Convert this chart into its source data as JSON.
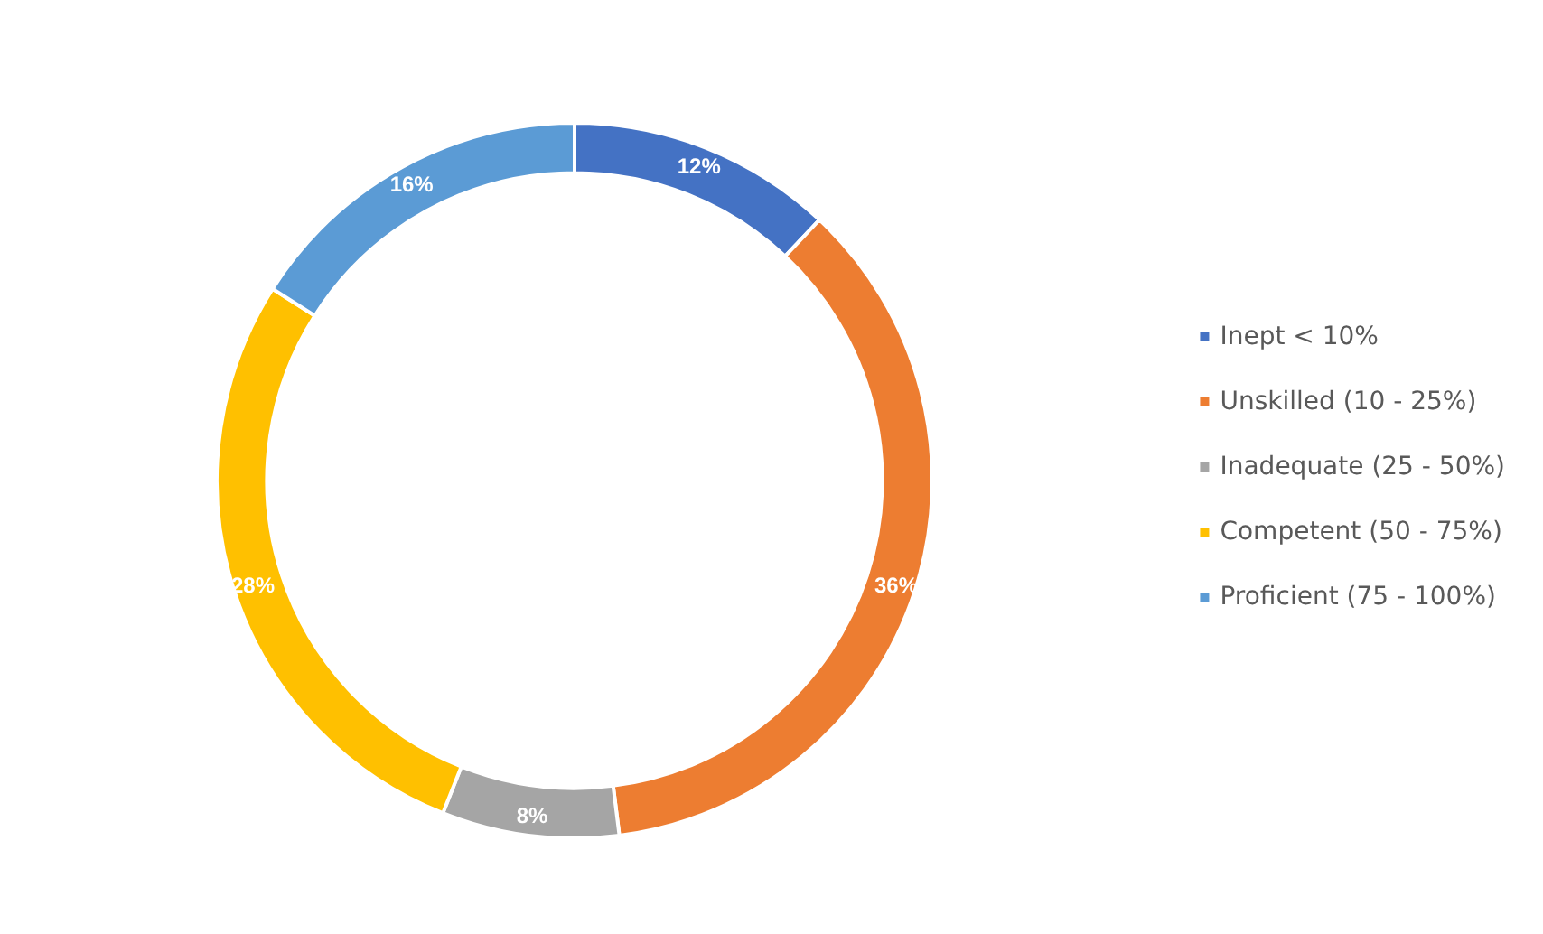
{
  "chart_data": {
    "type": "donut",
    "categories": [
      "Inept < 10%",
      "Unskilled (10 - 25%)",
      "Inadequate (25 - 50%)",
      "Competent (50 - 75%)",
      "Proficient (75 - 100%)"
    ],
    "values": [
      12,
      36,
      8,
      28,
      16
    ],
    "colors": [
      "#4472c4",
      "#ed7d31",
      "#a5a5a5",
      "#ffc000",
      "#5b9bd5"
    ],
    "value_labels": [
      "12%",
      "36%",
      "8%",
      "28%",
      "16%"
    ],
    "legend": "right"
  }
}
